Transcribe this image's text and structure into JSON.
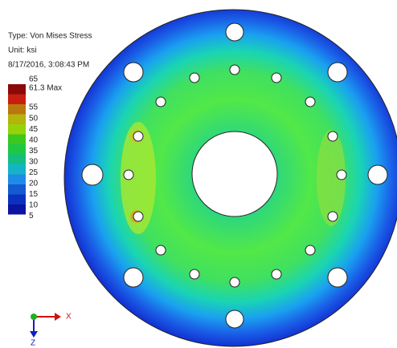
{
  "header": {
    "type": "Type: Von Mises Stress",
    "unit": "Unit: ksi",
    "timestamp": "8/17/2016, 3:08:43 PM"
  },
  "legend": {
    "max_label": "61.3 Max",
    "ticks": [
      65,
      55,
      50,
      45,
      40,
      35,
      30,
      25,
      20,
      15,
      10,
      5
    ],
    "colors": [
      "#8a0a0a",
      "#c81e10",
      "#b8780e",
      "#b4b40a",
      "#96d20a",
      "#3cc81e",
      "#1ec846",
      "#14be82",
      "#14b4c8",
      "#1e8ce6",
      "#145ad2",
      "#0a32be",
      "#0a14a0"
    ]
  },
  "axes": {
    "x": "X",
    "z": "Z"
  }
}
